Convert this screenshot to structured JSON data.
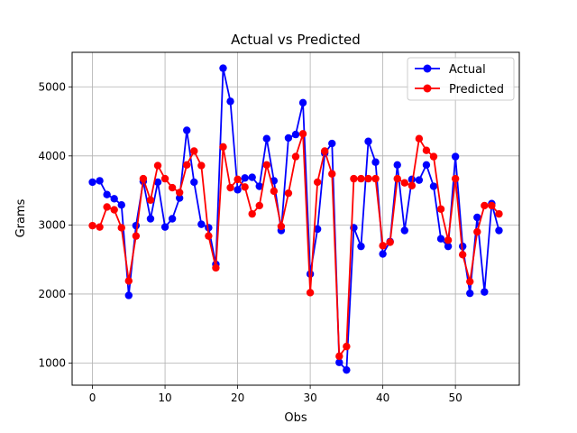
{
  "chart_data": {
    "type": "line",
    "title": "Actual vs Predicted",
    "xlabel": "Obs",
    "ylabel": "Grams",
    "xlim": [
      -2.8,
      58.8
    ],
    "ylim": [
      680,
      5500
    ],
    "x_ticks": [
      0,
      10,
      20,
      30,
      40,
      50
    ],
    "y_ticks": [
      1000,
      2000,
      3000,
      4000,
      5000
    ],
    "grid": true,
    "legend_position": "top-right",
    "series": [
      {
        "name": "Actual",
        "color": "#0000ff",
        "values": [
          3620,
          3640,
          3440,
          3380,
          3290,
          1980,
          2990,
          3630,
          3090,
          3620,
          2970,
          3090,
          3390,
          4370,
          3620,
          3010,
          2960,
          2430,
          5270,
          4790,
          3510,
          3680,
          3690,
          3560,
          4250,
          3640,
          2920,
          4260,
          4310,
          4770,
          2290,
          2940,
          4040,
          4180,
          1010,
          900,
          2960,
          2690,
          4210,
          3910,
          2580,
          2760,
          3870,
          2920,
          3660,
          3650,
          3870,
          3560,
          2800,
          2690,
          3990,
          2690,
          2010,
          3110,
          2030,
          3310,
          2920
        ]
      },
      {
        "name": "Predicted",
        "color": "#ff0000",
        "values": [
          2990,
          2970,
          3260,
          3220,
          2960,
          2190,
          2840,
          3670,
          3360,
          3860,
          3670,
          3540,
          3470,
          3870,
          4070,
          3860,
          2840,
          2380,
          4130,
          3540,
          3660,
          3550,
          3160,
          3280,
          3870,
          3490,
          2980,
          3460,
          3990,
          4320,
          2020,
          3620,
          4070,
          3740,
          1100,
          1240,
          3670,
          3670,
          3670,
          3670,
          2700,
          2750,
          3670,
          3610,
          3570,
          4250,
          4080,
          3990,
          3230,
          2780,
          3670,
          2570,
          2180,
          2900,
          3280,
          3280,
          3160
        ]
      }
    ]
  }
}
